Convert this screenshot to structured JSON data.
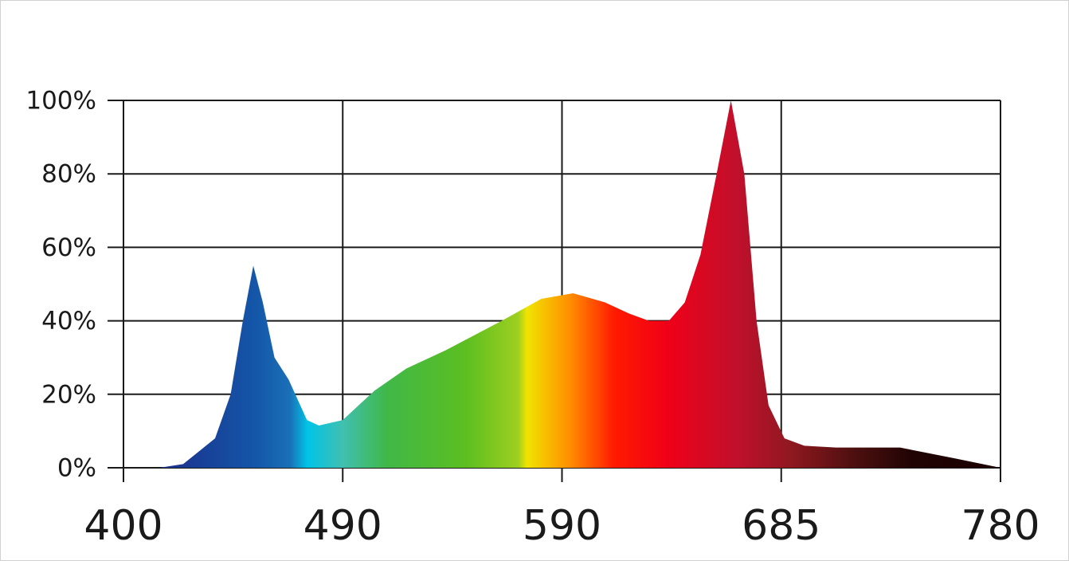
{
  "chart_data": {
    "type": "area",
    "x": [
      400,
      414.7,
      424.5,
      437.6,
      444,
      449,
      453.3,
      457.2,
      462,
      467.8,
      475.3,
      480.2,
      490,
      504.5,
      519,
      537,
      562.5,
      580.6,
      594.8,
      608.7,
      619,
      627.7,
      636.3,
      643.2,
      650,
      657,
      663.2,
      669,
      674.3,
      679.5,
      686.4,
      695,
      708.8,
      736.5,
      760.7,
      780
    ],
    "values": [
      0,
      0,
      1,
      8,
      20,
      40,
      55,
      45,
      30,
      24,
      13,
      11.5,
      13,
      21,
      27,
      32,
      40,
      46,
      47.5,
      45,
      42,
      40,
      40,
      45,
      58,
      80,
      100,
      80,
      40,
      17,
      8,
      6,
      5.5,
      5.5,
      2.5,
      0
    ],
    "xlim": [
      400,
      780
    ],
    "xticks": [
      400,
      490,
      590,
      685,
      780
    ],
    "ylim": [
      0,
      100
    ],
    "yticks": [
      {
        "value": 0,
        "label": "0%"
      },
      {
        "value": 20,
        "label": "20%"
      },
      {
        "value": 40,
        "label": "40%"
      },
      {
        "value": 60,
        "label": "60%"
      },
      {
        "value": 80,
        "label": "80%"
      },
      {
        "value": 100,
        "label": "100%"
      }
    ],
    "grid": true
  }
}
